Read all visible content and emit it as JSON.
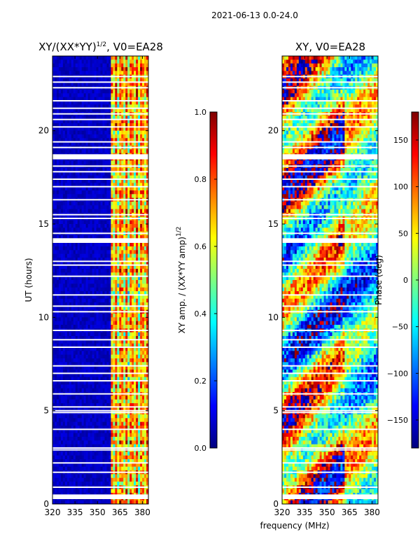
{
  "suptitle": "2021-06-13 0.0-24.0",
  "xlabel_shared": "frequency (MHz)",
  "colors": {
    "jet": [
      "#00007f",
      "#0000ff",
      "#007fff",
      "#00ffff",
      "#7fff7f",
      "#ffff00",
      "#ff7f00",
      "#ff0000",
      "#7f0000"
    ]
  },
  "chart_data": [
    {
      "type": "heatmap",
      "title_main": "XY/(XX*YY)",
      "title_sup": "1/2",
      "title_tail": ", V0=EA28",
      "ylabel": "UT (hours)",
      "xlim": [
        320,
        384
      ],
      "ylim": [
        0,
        24
      ],
      "xticks": [
        320,
        335,
        350,
        365,
        380
      ],
      "yticks": [
        0,
        5,
        10,
        15,
        20
      ],
      "description_values": {
        "low_freq_band_level": 0.05,
        "high_freq_band_range_mhz": [
          360,
          382
        ],
        "high_freq_band_level": [
          0.3,
          1.0
        ]
      },
      "colorbar": {
        "label_main": "XY amp. / (XX*YY amp)",
        "label_sup": "1/2",
        "range": [
          0.0,
          1.0
        ],
        "ticks": [
          "0.0",
          "0.2",
          "0.4",
          "0.6",
          "0.8",
          "1.0"
        ],
        "tick_values": [
          0.0,
          0.2,
          0.4,
          0.6,
          0.8,
          1.0
        ]
      }
    },
    {
      "type": "heatmap",
      "title": "XY, V0=EA28",
      "xlim": [
        320,
        384
      ],
      "ylim": [
        0,
        24
      ],
      "xticks": [
        320,
        335,
        350,
        365,
        380
      ],
      "yticks": [
        0,
        5,
        10,
        15,
        20
      ],
      "colorbar": {
        "label": "Phase (deg)",
        "range": [
          -180,
          180
        ],
        "ticks": [
          "−150",
          "−100",
          "−50",
          "0",
          "50",
          "100",
          "150"
        ],
        "tick_values": [
          -150,
          -100,
          -50,
          0,
          50,
          100,
          150
        ]
      }
    }
  ],
  "flagged_gaps_ut": [
    0.3,
    0.9,
    1.7,
    2.2,
    2.9,
    3.0,
    4.0,
    4.9,
    5.0,
    5.2,
    5.9,
    6.6,
    7.0,
    7.4,
    8.4,
    8.8,
    9.3,
    10.3,
    10.6,
    11.2,
    12.2,
    12.8,
    13.0,
    14.2,
    14.5,
    15.3,
    15.5,
    16.3,
    17.0,
    17.4,
    17.8,
    18.1,
    18.5,
    18.7,
    19.1,
    19.4,
    20.2,
    20.6,
    20.9,
    21.2,
    21.6,
    22.3,
    22.6,
    22.9
  ],
  "flagged_gaps_ut_thick": [
    14.1,
    18.6,
    0.4
  ]
}
